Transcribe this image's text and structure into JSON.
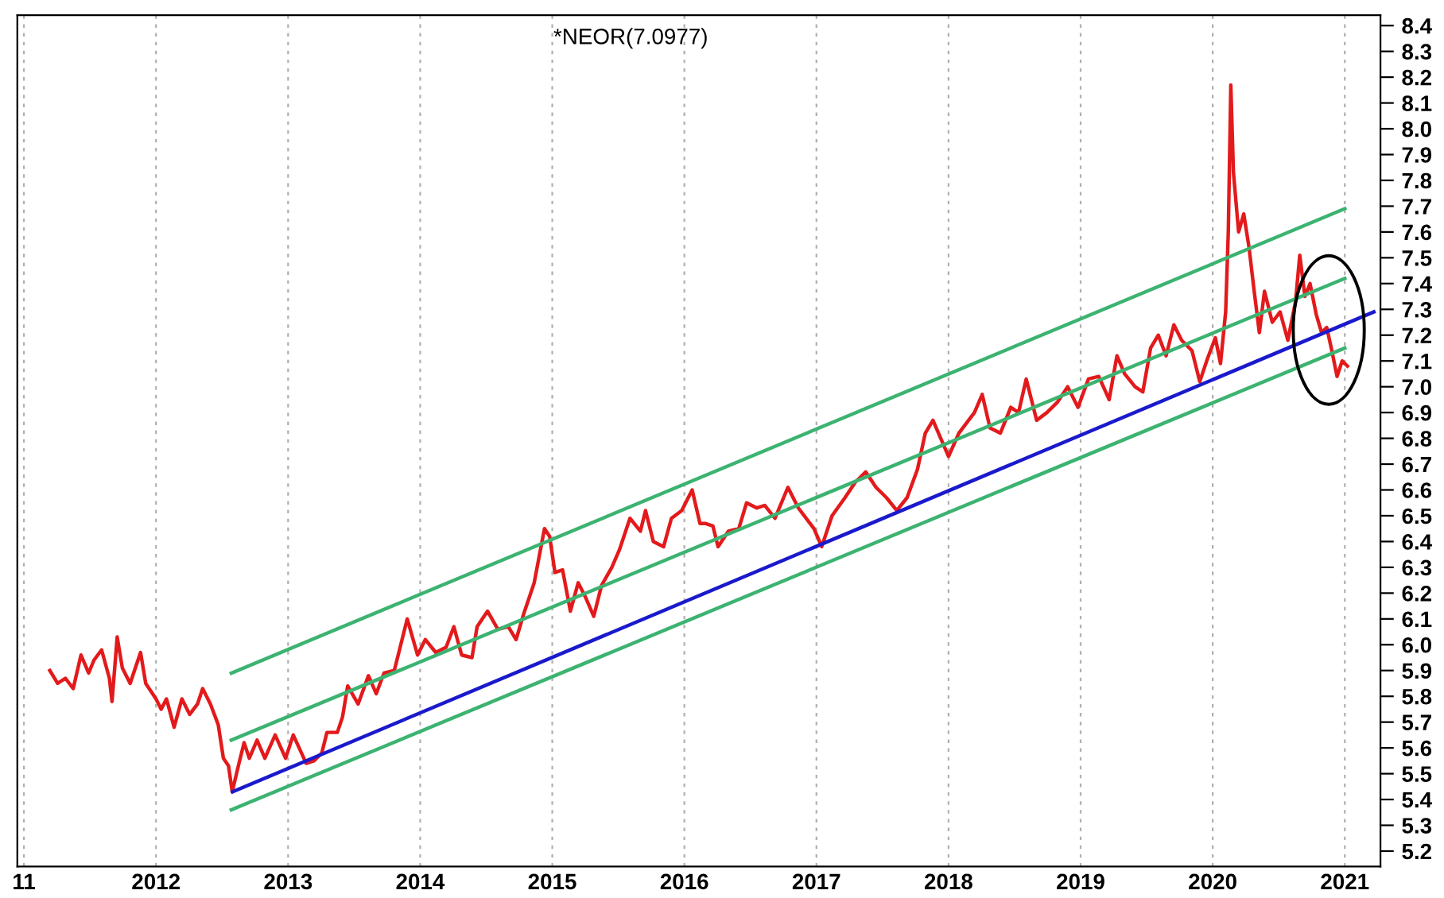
{
  "chart_data": {
    "type": "line",
    "annotations": [
      "*NEOR(7.0977)"
    ],
    "xlim": [
      2010.95,
      2021.27
    ],
    "xticks": [
      {
        "value": 2011,
        "label": "11"
      },
      2012,
      2013,
      2014,
      2015,
      2016,
      2017,
      2018,
      2019,
      2020,
      2021
    ],
    "ylim": [
      5.14,
      8.44
    ],
    "yticks": [
      5.2,
      5.3,
      5.4,
      5.5,
      5.6,
      5.7,
      5.8,
      5.9,
      {
        "value": 6,
        "label": "6.0"
      },
      6.1,
      6.2,
      6.3,
      6.4,
      6.5,
      6.6,
      6.7,
      6.8,
      6.9,
      {
        "value": 7,
        "label": "7.0"
      },
      7.1,
      7.2,
      7.3,
      7.4,
      7.5,
      7.6,
      7.7,
      7.8,
      7.9,
      {
        "value": 8,
        "label": "8.0"
      },
      8.1,
      8.2,
      8.3,
      8.4
    ],
    "grid": "x",
    "legend": false,
    "marker": "none",
    "line_style": "solid",
    "series": [
      {
        "color": "#e31a1c",
        "x": [
          2011.196,
          2011.255,
          2011.314,
          2011.373,
          2011.432,
          2011.49,
          2011.53,
          2011.588,
          2011.647,
          2011.667,
          2011.706,
          2011.745,
          2011.804,
          2011.883,
          2011.922,
          2012.0,
          2012.039,
          2012.079,
          2012.137,
          2012.196,
          2012.255,
          2012.314,
          2012.353,
          2012.412,
          2012.471,
          2012.51,
          2012.549,
          2012.577,
          2012.628,
          2012.667,
          2012.706,
          2012.765,
          2012.824,
          2012.902,
          2012.981,
          2013.039,
          2013.137,
          2013.196,
          2013.255,
          2013.294,
          2013.373,
          2013.412,
          2013.451,
          2013.53,
          2013.608,
          2013.667,
          2013.726,
          2013.804,
          2013.902,
          2013.98,
          2014.039,
          2014.118,
          2014.196,
          2014.255,
          2014.314,
          2014.392,
          2014.431,
          2014.51,
          2014.588,
          2014.667,
          2014.726,
          2014.784,
          2014.863,
          2014.941,
          2014.98,
          2015.02,
          2015.078,
          2015.137,
          2015.196,
          2015.255,
          2015.314,
          2015.373,
          2015.451,
          2015.51,
          2015.588,
          2015.667,
          2015.706,
          2015.765,
          2015.843,
          2015.902,
          2015.98,
          2016.059,
          2016.118,
          2016.157,
          2016.216,
          2016.255,
          2016.333,
          2016.412,
          2016.471,
          2016.549,
          2016.608,
          2016.686,
          2016.784,
          2016.863,
          2016.981,
          2017.04,
          2017.118,
          2017.216,
          2017.294,
          2017.373,
          2017.451,
          2017.53,
          2017.608,
          2017.686,
          2017.765,
          2017.824,
          2017.882,
          2017.941,
          2018.0,
          2018.078,
          2018.196,
          2018.255,
          2018.314,
          2018.392,
          2018.471,
          2018.53,
          2018.588,
          2018.667,
          2018.745,
          2018.824,
          2018.902,
          2018.98,
          2019.059,
          2019.137,
          2019.216,
          2019.275,
          2019.333,
          2019.412,
          2019.471,
          2019.53,
          2019.588,
          2019.647,
          2019.706,
          2019.765,
          2019.843,
          2019.902,
          2019.961,
          2020.02,
          2020.059,
          2020.098,
          2020.118,
          2020.137,
          2020.157,
          2020.196,
          2020.235,
          2020.275,
          2020.314,
          2020.353,
          2020.392,
          2020.451,
          2020.51,
          2020.569,
          2020.627,
          2020.659,
          2020.698,
          2020.737,
          2020.784,
          2020.824,
          2020.863,
          2020.902,
          2020.941,
          2020.98,
          2021.02
        ],
        "values": [
          5.9,
          5.85,
          5.87,
          5.83,
          5.96,
          5.89,
          5.94,
          5.98,
          5.87,
          5.78,
          6.03,
          5.91,
          5.85,
          5.97,
          5.85,
          5.79,
          5.75,
          5.79,
          5.68,
          5.79,
          5.73,
          5.77,
          5.83,
          5.77,
          5.69,
          5.56,
          5.53,
          5.43,
          5.54,
          5.62,
          5.56,
          5.63,
          5.56,
          5.65,
          5.56,
          5.65,
          5.54,
          5.55,
          5.58,
          5.66,
          5.66,
          5.72,
          5.84,
          5.77,
          5.88,
          5.81,
          5.89,
          5.9,
          6.1,
          5.96,
          6.02,
          5.97,
          5.99,
          6.07,
          5.96,
          5.95,
          6.07,
          6.13,
          6.06,
          6.07,
          6.02,
          6.12,
          6.24,
          6.45,
          6.42,
          6.28,
          6.29,
          6.13,
          6.24,
          6.18,
          6.11,
          6.23,
          6.3,
          6.37,
          6.49,
          6.44,
          6.52,
          6.4,
          6.38,
          6.49,
          6.52,
          6.6,
          6.47,
          6.47,
          6.46,
          6.38,
          6.44,
          6.45,
          6.55,
          6.53,
          6.54,
          6.49,
          6.61,
          6.53,
          6.45,
          6.38,
          6.5,
          6.57,
          6.63,
          6.67,
          6.61,
          6.57,
          6.52,
          6.57,
          6.68,
          6.82,
          6.87,
          6.8,
          6.73,
          6.82,
          6.9,
          6.97,
          6.84,
          6.82,
          6.92,
          6.9,
          7.03,
          6.87,
          6.9,
          6.94,
          7.0,
          6.92,
          7.03,
          7.04,
          6.95,
          7.12,
          7.05,
          7.0,
          6.98,
          7.15,
          7.2,
          7.12,
          7.24,
          7.18,
          7.14,
          7.02,
          7.11,
          7.19,
          7.09,
          7.29,
          7.6,
          8.17,
          7.83,
          7.6,
          7.67,
          7.54,
          7.37,
          7.21,
          7.37,
          7.25,
          7.29,
          7.18,
          7.33,
          7.51,
          7.35,
          7.4,
          7.28,
          7.21,
          7.23,
          7.14,
          7.04,
          7.1,
          7.08
        ]
      },
      {
        "type": "line",
        "color": "#1a1acc",
        "x": [
          2012.58,
          2021.22
        ],
        "values": [
          5.43,
          7.29
        ]
      },
      {
        "type": "line",
        "color": "#3cb371",
        "x": [
          2012.57,
          2021.0
        ],
        "values": [
          5.36,
          7.15
        ]
      },
      {
        "type": "line",
        "color": "#3cb371",
        "x": [
          2012.57,
          2021.0
        ],
        "values": [
          5.63,
          7.42
        ]
      },
      {
        "type": "line",
        "color": "#3cb371",
        "x": [
          2012.57,
          2021.0
        ],
        "values": [
          5.89,
          7.69
        ]
      }
    ]
  }
}
